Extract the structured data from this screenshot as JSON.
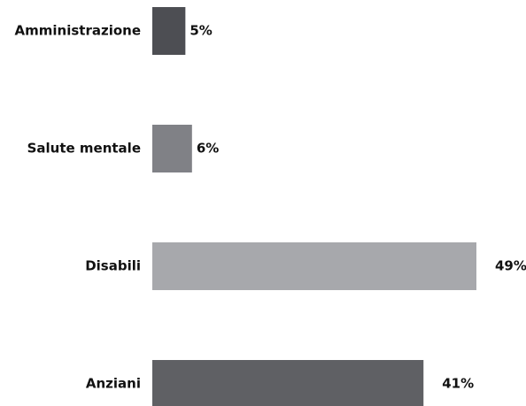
{
  "chart_data": {
    "type": "bar",
    "orientation": "horizontal",
    "categories": [
      "Amministrazione",
      "Salute mentale",
      "Disabili",
      "Anziani"
    ],
    "values": [
      5,
      6,
      49,
      41
    ],
    "value_labels": [
      "5%",
      "6%",
      "49%",
      "41%"
    ],
    "unit": "%",
    "bar_colors": [
      "#4d4e53",
      "#808186",
      "#a7a8ac",
      "#5f6064"
    ],
    "xlim": [
      0,
      49
    ],
    "grid": false,
    "legend": "none"
  }
}
